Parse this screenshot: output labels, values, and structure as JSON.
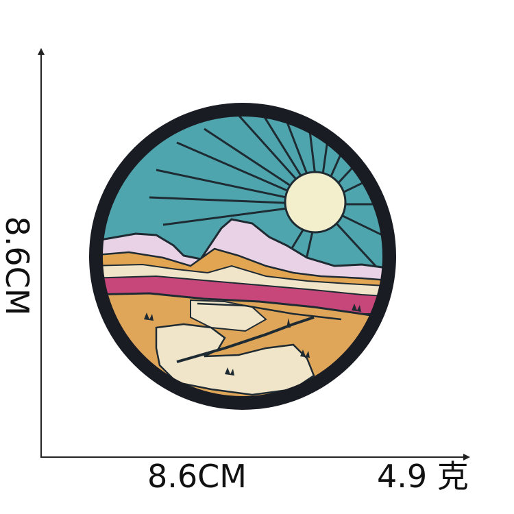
{
  "dimensions": {
    "height_label": "8.6CM",
    "width_label": "8.6CM",
    "weight_label": "4.9 克"
  },
  "colors": {
    "border": "#1a1c24",
    "sky": "#4ea5ad",
    "sun": "#f3efcd",
    "rays": "#1f2b33",
    "peaks": "#e9d2e6",
    "ochre": "#e2a552",
    "sand": "#f0e4c9",
    "magenta": "#c8477a",
    "desert": "#dfa65a"
  }
}
